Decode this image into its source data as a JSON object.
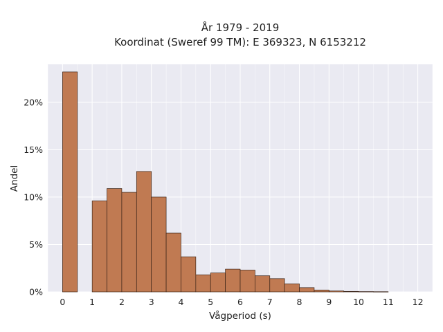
{
  "chart_data": {
    "type": "bar",
    "title_lines": [
      "År 1979 - 2019",
      "Koordinat (Sweref 99 TM): E 369323, N 6153212"
    ],
    "xlabel": "Vågperiod (s)",
    "ylabel": "Andel",
    "x_ticks": [
      "0",
      "1",
      "2",
      "3",
      "4",
      "5",
      "6",
      "7",
      "8",
      "9",
      "10",
      "11",
      "12"
    ],
    "y_ticks": [
      "0%",
      "5%",
      "10%",
      "15%",
      "20%"
    ],
    "xlim": [
      -0.5,
      12.5
    ],
    "ylim": [
      0,
      24
    ],
    "grid": true,
    "bar_width": 0.5,
    "bar_color": "#c07a52",
    "bar_edge_color": "#3a2418",
    "background_color": "#eaeaf2",
    "bars": [
      {
        "x": 0.25,
        "value": 23.2
      },
      {
        "x": 1.25,
        "value": 9.6
      },
      {
        "x": 1.75,
        "value": 10.9
      },
      {
        "x": 2.25,
        "value": 10.5
      },
      {
        "x": 2.75,
        "value": 12.7
      },
      {
        "x": 3.25,
        "value": 10.0
      },
      {
        "x": 3.75,
        "value": 6.2
      },
      {
        "x": 4.25,
        "value": 3.7
      },
      {
        "x": 4.75,
        "value": 1.8
      },
      {
        "x": 5.25,
        "value": 2.0
      },
      {
        "x": 5.75,
        "value": 2.4
      },
      {
        "x": 6.25,
        "value": 2.3
      },
      {
        "x": 6.75,
        "value": 1.7
      },
      {
        "x": 7.25,
        "value": 1.4
      },
      {
        "x": 7.75,
        "value": 0.85
      },
      {
        "x": 8.25,
        "value": 0.45
      },
      {
        "x": 8.75,
        "value": 0.2
      },
      {
        "x": 9.25,
        "value": 0.1
      },
      {
        "x": 9.75,
        "value": 0.05
      },
      {
        "x": 10.25,
        "value": 0.03
      },
      {
        "x": 10.75,
        "value": 0.02
      }
    ]
  }
}
